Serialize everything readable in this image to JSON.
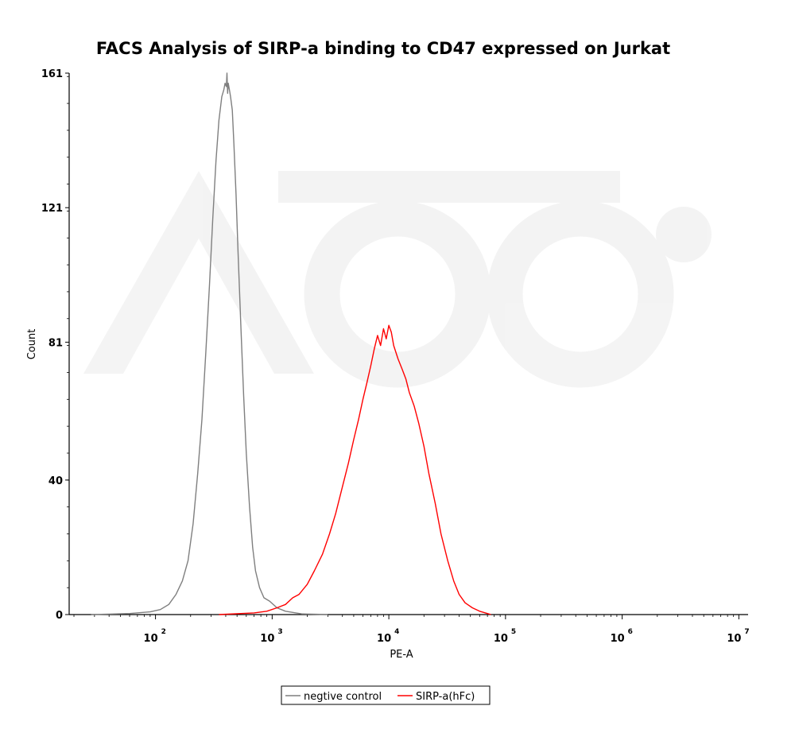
{
  "chart_data": {
    "type": "line",
    "title": "FACS Analysis of SIRP-a binding to CD47 expressed on Jurkat",
    "xlabel": "PE-A",
    "ylabel": "Count",
    "x_scale": "log",
    "xlim": [
      18.2,
      12000000
    ],
    "ylim": [
      0,
      161
    ],
    "x_ticks": [
      {
        "value": 100,
        "base": "10",
        "exp": "2"
      },
      {
        "value": 1000,
        "base": "10",
        "exp": "3"
      },
      {
        "value": 10000,
        "base": "10",
        "exp": "4"
      },
      {
        "value": 100000,
        "base": "10",
        "exp": "5"
      },
      {
        "value": 1000000,
        "base": "10",
        "exp": "6"
      },
      {
        "value": 10000000,
        "base": "10",
        "exp": "7"
      }
    ],
    "y_ticks": [
      "0",
      "40",
      "81",
      "121",
      "161"
    ],
    "grid": false,
    "legend_position": "bottom-center",
    "series": [
      {
        "name": "negtive control",
        "color": "#7f7f7f",
        "x": [
          28,
          60,
          90,
          110,
          130,
          150,
          170,
          190,
          210,
          230,
          250,
          270,
          290,
          310,
          330,
          350,
          370,
          385,
          395,
          405,
          410,
          415,
          420,
          430,
          440,
          455,
          470,
          490,
          510,
          540,
          570,
          600,
          640,
          680,
          720,
          780,
          850,
          950,
          1100,
          1300,
          1800,
          3000
        ],
        "y": [
          0,
          0.3,
          0.8,
          1.5,
          3,
          6,
          10,
          16,
          27,
          42,
          58,
          78,
          98,
          118,
          135,
          147,
          154,
          156,
          158,
          157,
          161,
          155,
          158,
          156,
          154,
          150,
          140,
          125,
          108,
          85,
          65,
          48,
          32,
          20,
          13,
          8,
          5,
          4,
          2,
          1,
          0.2,
          0
        ]
      },
      {
        "name": "SIRP-a(hFc)",
        "color": "#ff0000",
        "x": [
          350,
          700,
          900,
          1100,
          1300,
          1500,
          1700,
          2000,
          2300,
          2700,
          3100,
          3500,
          4000,
          4500,
          5000,
          5500,
          6000,
          6500,
          7000,
          7500,
          8000,
          8500,
          9000,
          9500,
          10000,
          10500,
          11000,
          12000,
          13000,
          14000,
          15000,
          16500,
          18000,
          20000,
          22000,
          25000,
          28000,
          32000,
          36000,
          40000,
          45000,
          52000,
          60000,
          70000,
          75000
        ],
        "y": [
          0,
          0.5,
          1,
          2,
          3,
          5,
          6,
          9,
          13,
          18,
          24,
          30,
          38,
          45,
          52,
          58,
          64,
          69,
          74,
          79,
          83,
          80,
          85,
          82,
          86,
          84,
          80,
          76,
          73,
          70,
          66,
          62,
          57,
          50,
          42,
          33,
          24,
          16,
          10,
          6,
          3.5,
          2,
          1,
          0.3,
          0
        ]
      }
    ]
  }
}
